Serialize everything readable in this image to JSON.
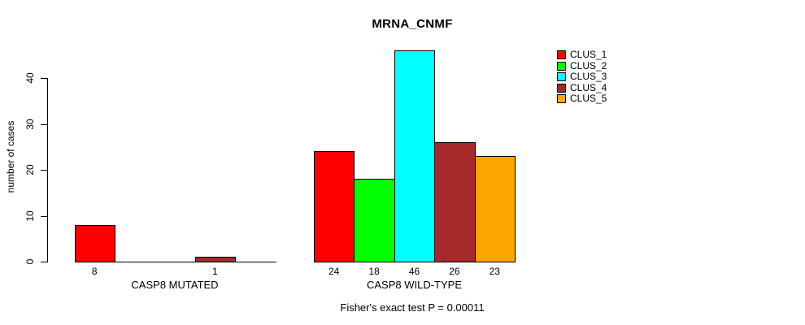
{
  "title": "MRNA_CNMF",
  "y_axis": {
    "label": "number of cases",
    "ticks": [
      0,
      10,
      20,
      30,
      40
    ]
  },
  "footnote": "Fisher's exact test P = 0.00011",
  "legend": {
    "position": "top-right",
    "items": [
      {
        "label": "CLUS_1",
        "color": "#FF0000"
      },
      {
        "label": "CLUS_2",
        "color": "#00FF00"
      },
      {
        "label": "CLUS_3",
        "color": "#00FFFF"
      },
      {
        "label": "CLUS_4",
        "color": "#A52A2A"
      },
      {
        "label": "CLUS_5",
        "color": "#FFA500"
      }
    ]
  },
  "chart_data": {
    "type": "bar",
    "title": "MRNA_CNMF",
    "ylabel": "number of cases",
    "xlabel": "",
    "ylim": [
      0,
      46
    ],
    "yticks": [
      0,
      10,
      20,
      30,
      40
    ],
    "grid": false,
    "legend_position": "right",
    "series_names": [
      "CLUS_1",
      "CLUS_2",
      "CLUS_3",
      "CLUS_4",
      "CLUS_5"
    ],
    "series_colors": [
      "#FF0000",
      "#00FF00",
      "#00FFFF",
      "#A52A2A",
      "#FFA500"
    ],
    "groups": [
      {
        "label": "CASP8 MUTATED",
        "values": [
          8,
          0,
          0,
          1,
          0
        ]
      },
      {
        "label": "CASP8 WILD-TYPE",
        "values": [
          24,
          18,
          46,
          26,
          23
        ]
      }
    ],
    "value_labels_shown_for_nonzero_only": true,
    "annotation": "Fisher's exact test P = 0.00011"
  }
}
